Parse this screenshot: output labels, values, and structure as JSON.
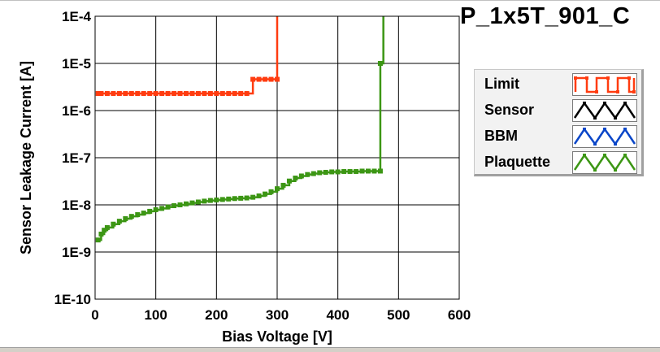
{
  "title": "P_1x5T_901_C",
  "chart_data": {
    "type": "line",
    "xlabel": "Bias Voltage [V]",
    "ylabel": "Sensor Leakage Current [A]",
    "xlim": [
      0,
      600
    ],
    "ylim": [
      1e-10,
      0.0001
    ],
    "yscale": "log",
    "grid": true,
    "x_ticks": [
      0,
      100,
      200,
      300,
      400,
      500,
      600
    ],
    "x_tick_labels": [
      "0",
      "100",
      "200",
      "300",
      "400",
      "500",
      "600"
    ],
    "y_ticks": [
      1e-10,
      1e-09,
      1e-08,
      1e-07,
      1e-06,
      1e-05,
      0.0001
    ],
    "y_tick_labels": [
      "1E-10",
      "1E-9",
      "1E-8",
      "1E-7",
      "1E-6",
      "1E-5",
      "1E-4"
    ],
    "legend_position": "right",
    "series": [
      {
        "name": "Limit",
        "color": "#ff3c10",
        "x": [
          5,
          10,
          20,
          30,
          40,
          50,
          60,
          70,
          80,
          90,
          100,
          110,
          120,
          130,
          140,
          150,
          160,
          170,
          180,
          190,
          200,
          210,
          220,
          230,
          240,
          250,
          260,
          270,
          280,
          290,
          300,
          300
        ],
        "y": [
          2.3e-06,
          2.3e-06,
          2.3e-06,
          2.3e-06,
          2.3e-06,
          2.3e-06,
          2.3e-06,
          2.3e-06,
          2.3e-06,
          2.3e-06,
          2.3e-06,
          2.3e-06,
          2.3e-06,
          2.3e-06,
          2.3e-06,
          2.3e-06,
          2.3e-06,
          2.3e-06,
          2.3e-06,
          2.3e-06,
          2.3e-06,
          2.3e-06,
          2.3e-06,
          2.3e-06,
          2.3e-06,
          2.3e-06,
          4.6e-06,
          4.6e-06,
          4.6e-06,
          4.6e-06,
          4.6e-06,
          0.0001
        ]
      },
      {
        "name": "Plaquette",
        "color": "#3c9614",
        "x": [
          5,
          10,
          15,
          20,
          30,
          40,
          50,
          60,
          70,
          80,
          90,
          100,
          110,
          120,
          130,
          140,
          150,
          160,
          170,
          180,
          190,
          200,
          210,
          220,
          230,
          240,
          250,
          260,
          270,
          280,
          290,
          300,
          310,
          320,
          330,
          340,
          350,
          360,
          370,
          380,
          390,
          400,
          410,
          420,
          430,
          440,
          450,
          460,
          470,
          470,
          475
        ],
        "y": [
          1.8e-09,
          2.4e-09,
          2.9e-09,
          3.3e-09,
          3.9e-09,
          4.5e-09,
          5.1e-09,
          5.7e-09,
          6.2e-09,
          6.7e-09,
          7.3e-09,
          7.9e-09,
          8.4e-09,
          9e-09,
          9.6e-09,
          1e-08,
          1.05e-08,
          1.1e-08,
          1.15e-08,
          1.2e-08,
          1.24e-08,
          1.27e-08,
          1.3e-08,
          1.33e-08,
          1.36e-08,
          1.38e-08,
          1.4e-08,
          1.45e-08,
          1.55e-08,
          1.7e-08,
          1.9e-08,
          2.2e-08,
          2.6e-08,
          3.2e-08,
          3.7e-08,
          4.1e-08,
          4.4e-08,
          4.6e-08,
          4.8e-08,
          4.9e-08,
          5e-08,
          5e-08,
          5.1e-08,
          5.1e-08,
          5.1e-08,
          5.2e-08,
          5.2e-08,
          5.2e-08,
          5.2e-08,
          1e-05,
          0.0001
        ]
      }
    ]
  },
  "legend": [
    {
      "label": "Limit",
      "color": "#ff3c10",
      "icon": "square-wave-icon"
    },
    {
      "label": "Sensor",
      "color": "#000000",
      "icon": "triangle-wave-icon"
    },
    {
      "label": "BBM",
      "color": "#0a46c8",
      "icon": "triangle-wave-icon"
    },
    {
      "label": "Plaquette",
      "color": "#3c9614",
      "icon": "triangle-wave-icon"
    }
  ]
}
